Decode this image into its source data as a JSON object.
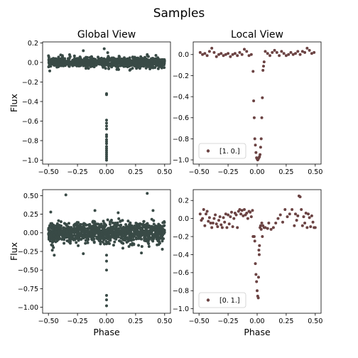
{
  "figure_title": "Samples",
  "colors": {
    "global_points": "#394a46",
    "local_points": "#6b4343",
    "axes": "#000000"
  },
  "chart_data": [
    {
      "type": "scatter",
      "panel": "top-left",
      "title": "Global View",
      "xlabel": "",
      "ylabel": "Flux",
      "xlim": [
        -0.55,
        0.55
      ],
      "ylim": [
        -1.04,
        0.21
      ],
      "xticks": [
        -0.5,
        -0.25,
        0.0,
        0.25,
        0.5
      ],
      "xtick_labels": [
        "−0.50",
        "−0.25",
        "0.00",
        "0.25",
        "0.50"
      ],
      "yticks": [
        0.2,
        0.0,
        -0.2,
        -0.4,
        -0.6,
        -0.8,
        -1.0
      ],
      "ytick_labels": [
        "0.2",
        "0.0",
        "−0.2",
        "−0.4",
        "−0.6",
        "−0.8",
        "−1.0"
      ],
      "color": "#394a46",
      "legend": null,
      "noise": {
        "x_range": [
          -0.5,
          0.5
        ],
        "n": 900,
        "sigma": 0.025,
        "outliers": [
          [
            -0.2,
            0.12
          ],
          [
            -0.02,
            0.14
          ],
          [
            0.01,
            0.1
          ],
          [
            0.2,
            -0.08
          ],
          [
            -0.38,
            0.07
          ],
          [
            0.35,
            0.08
          ]
        ]
      },
      "points": [
        [
          0.0,
          -0.32
        ],
        [
          0.0,
          -0.33
        ],
        [
          0.0,
          -0.59
        ],
        [
          0.0,
          -0.62
        ],
        [
          0.0,
          -0.65
        ],
        [
          0.0,
          -0.68
        ],
        [
          0.0,
          -0.74
        ],
        [
          0.0,
          -0.76
        ],
        [
          0.0,
          -0.79
        ],
        [
          0.0,
          -0.81
        ],
        [
          0.0,
          -0.83
        ],
        [
          0.0,
          -0.86
        ],
        [
          0.0,
          -0.88
        ],
        [
          0.0,
          -0.9
        ],
        [
          0.0,
          -0.92
        ],
        [
          0.0,
          -0.94
        ],
        [
          0.0,
          -0.96
        ],
        [
          0.0,
          -0.98
        ],
        [
          0.0,
          -1.0
        ]
      ]
    },
    {
      "type": "scatter",
      "panel": "top-right",
      "title": "Local View",
      "xlabel": "",
      "ylabel": "",
      "xlim": [
        -0.55,
        0.55
      ],
      "ylim": [
        -1.04,
        0.12
      ],
      "xticks": [
        -0.5,
        -0.25,
        0.0,
        0.25,
        0.5
      ],
      "xtick_labels": [
        "−0.50",
        "−0.25",
        "0.00",
        "0.25",
        "0.50"
      ],
      "yticks": [
        0.0,
        -0.2,
        -0.4,
        -0.6,
        -0.8,
        -1.0
      ],
      "ytick_labels": [
        "0.0",
        "−0.2",
        "−0.4",
        "−0.6",
        "−0.8",
        "−1.0"
      ],
      "color": "#6b4343",
      "legend": {
        "label": "[1. 0.]",
        "placement": "lower-left"
      },
      "points": [
        [
          -0.49,
          0.02
        ],
        [
          -0.47,
          0.0
        ],
        [
          -0.45,
          0.01
        ],
        [
          -0.43,
          -0.01
        ],
        [
          -0.41,
          0.03
        ],
        [
          -0.39,
          0.06
        ],
        [
          -0.37,
          0.02
        ],
        [
          -0.35,
          -0.02
        ],
        [
          -0.33,
          0.0
        ],
        [
          -0.31,
          0.01
        ],
        [
          -0.29,
          -0.01
        ],
        [
          -0.27,
          0.0
        ],
        [
          -0.25,
          0.01
        ],
        [
          -0.23,
          -0.02
        ],
        [
          -0.21,
          0.0
        ],
        [
          -0.19,
          0.01
        ],
        [
          -0.17,
          -0.01
        ],
        [
          -0.15,
          0.02
        ],
        [
          -0.13,
          0.0
        ],
        [
          -0.11,
          0.05
        ],
        [
          -0.09,
          0.03
        ],
        [
          -0.07,
          -0.01
        ],
        [
          -0.05,
          0.0
        ],
        [
          -0.035,
          -0.16
        ],
        [
          -0.03,
          -0.44
        ],
        [
          -0.025,
          -0.6
        ],
        [
          -0.02,
          -0.8
        ],
        [
          -0.015,
          -0.86
        ],
        [
          -0.01,
          -0.93
        ],
        [
          -0.005,
          -0.98
        ],
        [
          0.0,
          -0.99
        ],
        [
          0.005,
          -1.0
        ],
        [
          0.01,
          -0.99
        ],
        [
          0.015,
          -0.98
        ],
        [
          0.02,
          -0.97
        ],
        [
          0.025,
          -0.95
        ],
        [
          0.03,
          -0.88
        ],
        [
          0.035,
          -0.8
        ],
        [
          0.04,
          -0.6
        ],
        [
          0.045,
          -0.41
        ],
        [
          0.05,
          -0.15
        ],
        [
          0.055,
          -0.11
        ],
        [
          0.06,
          -0.07
        ],
        [
          0.07,
          0.03
        ],
        [
          0.09,
          0.01
        ],
        [
          0.11,
          -0.01
        ],
        [
          0.13,
          0.02
        ],
        [
          0.15,
          0.04
        ],
        [
          0.17,
          0.02
        ],
        [
          0.19,
          -0.01
        ],
        [
          0.21,
          0.03
        ],
        [
          0.23,
          0.01
        ],
        [
          0.25,
          -0.01
        ],
        [
          0.27,
          0.0
        ],
        [
          0.29,
          0.02
        ],
        [
          0.31,
          0.0
        ],
        [
          0.33,
          0.01
        ],
        [
          0.35,
          0.03
        ],
        [
          0.37,
          0.0
        ],
        [
          0.39,
          0.03
        ],
        [
          0.41,
          0.02
        ],
        [
          0.43,
          0.06
        ],
        [
          0.45,
          0.04
        ],
        [
          0.47,
          0.01
        ],
        [
          0.49,
          0.02
        ]
      ]
    },
    {
      "type": "scatter",
      "panel": "bottom-left",
      "title": "",
      "xlabel": "Phase",
      "ylabel": "Flux",
      "xlim": [
        -0.55,
        0.55
      ],
      "ylim": [
        -1.08,
        0.58
      ],
      "xticks": [
        -0.5,
        -0.25,
        0.0,
        0.25,
        0.5
      ],
      "xtick_labels": [
        "−0.50",
        "−0.25",
        "0.00",
        "0.25",
        "0.50"
      ],
      "yticks": [
        0.5,
        0.25,
        0.0,
        -0.25,
        -0.5,
        -0.75,
        -1.0
      ],
      "ytick_labels": [
        "0.50",
        "0.25",
        "0.00",
        "−0.25",
        "−0.50",
        "−0.75",
        "−1.00"
      ],
      "color": "#394a46",
      "legend": null,
      "noise": {
        "x_range": [
          -0.5,
          0.5
        ],
        "n": 1100,
        "sigma": 0.07,
        "outliers": [
          [
            -0.35,
            0.51
          ],
          [
            0.35,
            0.53
          ],
          [
            -0.45,
            -0.3
          ],
          [
            0.3,
            -0.27
          ],
          [
            -0.2,
            -0.28
          ],
          [
            0.48,
            -0.22
          ],
          [
            -0.1,
            0.3
          ],
          [
            0.1,
            0.27
          ],
          [
            -0.48,
            0.28
          ],
          [
            0.4,
            0.3
          ]
        ]
      },
      "points": [
        [
          0.0,
          -0.3
        ],
        [
          0.0,
          -0.38
        ],
        [
          0.0,
          -0.5
        ],
        [
          0.0,
          -0.84
        ],
        [
          0.0,
          -0.9
        ],
        [
          0.0,
          -0.98
        ]
      ]
    },
    {
      "type": "scatter",
      "panel": "bottom-right",
      "title": "",
      "xlabel": "Phase",
      "ylabel": "",
      "xlim": [
        -0.55,
        0.55
      ],
      "ylim": [
        -1.05,
        0.32
      ],
      "xticks": [
        -0.5,
        -0.25,
        0.0,
        0.25,
        0.5
      ],
      "xtick_labels": [
        "−0.50",
        "−0.25",
        "0.00",
        "0.25",
        "0.50"
      ],
      "yticks": [
        0.2,
        0.0,
        -0.2,
        -0.4,
        -0.6,
        -0.8,
        -1.0
      ],
      "ytick_labels": [
        "0.2",
        "0.0",
        "−0.2",
        "−0.4",
        "−0.6",
        "−0.8",
        "−1.0"
      ],
      "color": "#6b4343",
      "legend": {
        "label": "[0. 1.]",
        "placement": "lower-left"
      },
      "points": [
        [
          -0.49,
          0.05
        ],
        [
          -0.48,
          -0.02
        ],
        [
          -0.47,
          0.0
        ],
        [
          -0.46,
          0.1
        ],
        [
          -0.45,
          -0.08
        ],
        [
          -0.44,
          0.05
        ],
        [
          -0.43,
          0.08
        ],
        [
          -0.42,
          -0.03
        ],
        [
          -0.41,
          0.01
        ],
        [
          -0.4,
          -0.05
        ],
        [
          -0.39,
          -0.1
        ],
        [
          -0.38,
          -0.05
        ],
        [
          -0.37,
          0.0
        ],
        [
          -0.36,
          0.04
        ],
        [
          -0.35,
          -0.06
        ],
        [
          -0.34,
          -0.09
        ],
        [
          -0.33,
          -0.02
        ],
        [
          -0.32,
          0.02
        ],
        [
          -0.31,
          -0.07
        ],
        [
          -0.3,
          -0.1
        ],
        [
          -0.29,
          0.01
        ],
        [
          -0.28,
          -0.04
        ],
        [
          -0.27,
          0.05
        ],
        [
          -0.26,
          -0.1
        ],
        [
          -0.25,
          0.04
        ],
        [
          -0.24,
          -0.06
        ],
        [
          -0.23,
          0.02
        ],
        [
          -0.22,
          0.07
        ],
        [
          -0.21,
          -0.09
        ],
        [
          -0.2,
          0.0
        ],
        [
          -0.19,
          0.06
        ],
        [
          -0.18,
          0.04
        ],
        [
          -0.17,
          -0.1
        ],
        [
          -0.16,
          0.08
        ],
        [
          -0.15,
          0.1
        ],
        [
          -0.14,
          0.05
        ],
        [
          -0.13,
          0.09
        ],
        [
          -0.12,
          0.03
        ],
        [
          -0.11,
          0.1
        ],
        [
          -0.1,
          0.04
        ],
        [
          -0.09,
          0.06
        ],
        [
          -0.08,
          0.0
        ],
        [
          -0.07,
          0.08
        ],
        [
          -0.06,
          0.07
        ],
        [
          -0.05,
          0.02
        ],
        [
          -0.04,
          0.09
        ],
        [
          -0.035,
          -0.2
        ],
        [
          -0.025,
          -0.2
        ],
        [
          -0.02,
          -0.25
        ],
        [
          -0.015,
          -0.5
        ],
        [
          -0.01,
          -0.62
        ],
        [
          -0.005,
          -0.7
        ],
        [
          0.0,
          -0.8
        ],
        [
          0.005,
          -0.86
        ],
        [
          0.01,
          -0.88
        ],
        [
          0.012,
          -0.65
        ],
        [
          0.015,
          -0.35
        ],
        [
          0.018,
          -0.4
        ],
        [
          0.02,
          -0.3
        ],
        [
          0.025,
          -0.1
        ],
        [
          0.03,
          -0.08
        ],
        [
          0.035,
          -0.12
        ],
        [
          0.04,
          -0.05
        ],
        [
          0.045,
          -0.2
        ],
        [
          0.05,
          -0.08
        ],
        [
          0.06,
          -0.1
        ],
        [
          0.07,
          -0.1
        ],
        [
          0.09,
          -0.11
        ],
        [
          0.1,
          -0.05
        ],
        [
          0.12,
          -0.12
        ],
        [
          0.14,
          -0.1
        ],
        [
          0.16,
          -0.05
        ],
        [
          0.18,
          0.0
        ],
        [
          0.2,
          0.04
        ],
        [
          0.22,
          -0.04
        ],
        [
          0.24,
          0.1
        ],
        [
          0.26,
          0.02
        ],
        [
          0.28,
          0.05
        ],
        [
          0.3,
          0.1
        ],
        [
          0.32,
          -0.08
        ],
        [
          0.33,
          0.05
        ],
        [
          0.34,
          -0.02
        ],
        [
          0.35,
          0.03
        ],
        [
          0.36,
          0.25
        ],
        [
          0.37,
          0.24
        ],
        [
          0.38,
          0.1
        ],
        [
          0.39,
          -0.08
        ],
        [
          0.4,
          0.02
        ],
        [
          0.41,
          -0.05
        ],
        [
          0.42,
          0.06
        ],
        [
          0.43,
          -0.1
        ],
        [
          0.44,
          0.05
        ],
        [
          0.45,
          0.01
        ],
        [
          0.46,
          -0.09
        ],
        [
          0.47,
          0.03
        ],
        [
          0.48,
          -0.04
        ],
        [
          0.49,
          -0.1
        ],
        [
          0.5,
          -0.1
        ]
      ]
    }
  ]
}
